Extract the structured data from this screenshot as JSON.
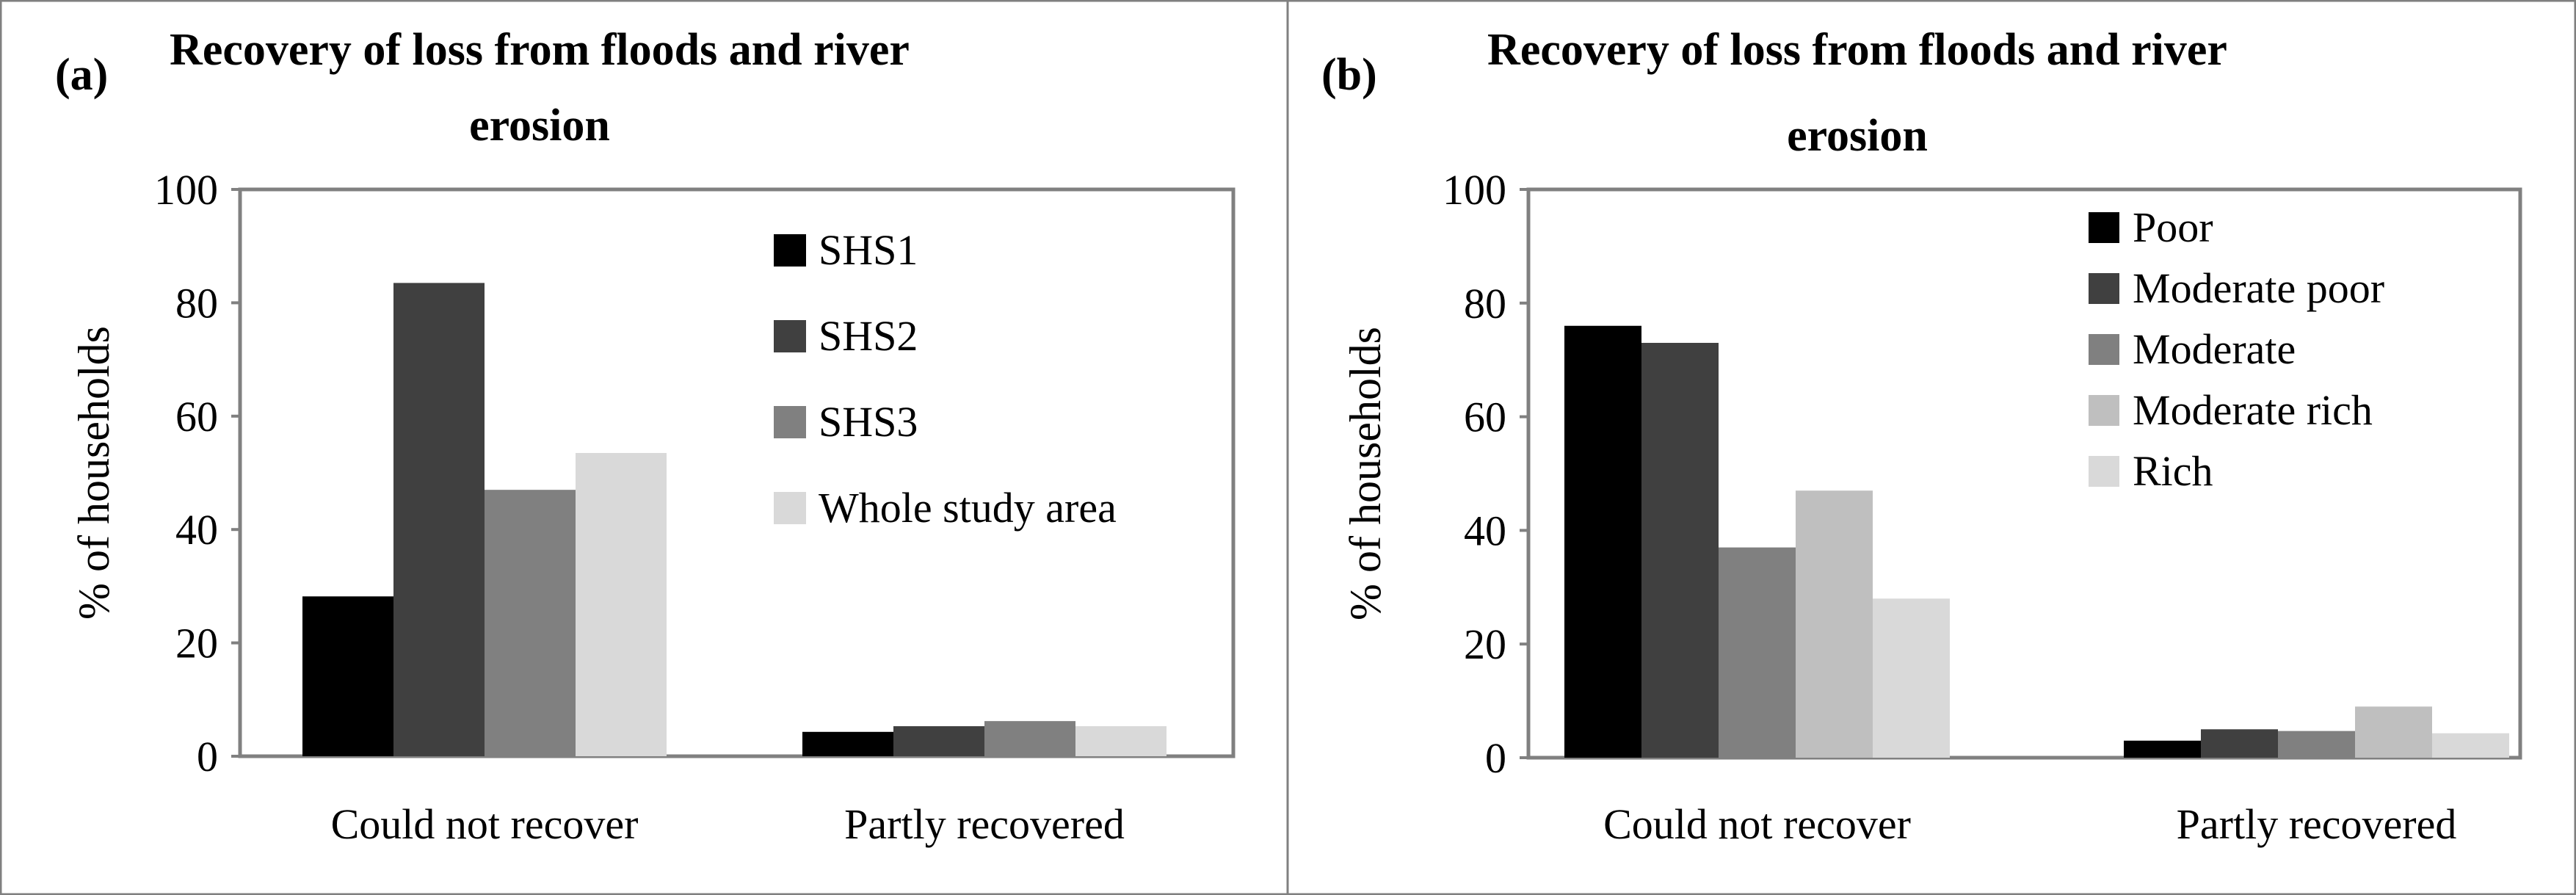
{
  "chart_data": [
    {
      "panel": "(a)",
      "type": "bar",
      "title_lines": [
        "Recovery of loss from floods and river",
        "erosion"
      ],
      "xlabel": "",
      "ylabel": "% of households",
      "ylim": [
        0,
        100
      ],
      "yticks": [
        "0",
        "20",
        "40",
        "60",
        "80",
        "100"
      ],
      "categories": [
        "Could not recover",
        "Partly recovered"
      ],
      "grid": false,
      "legend_position": "top-right",
      "series": [
        {
          "name": "SHS1",
          "color": "#000000",
          "values": [
            28.2,
            4.3
          ]
        },
        {
          "name": "SHS2",
          "color": "#404040",
          "values": [
            83.5,
            5.3
          ]
        },
        {
          "name": "SHS3",
          "color": "#808080",
          "values": [
            47.0,
            6.2
          ]
        },
        {
          "name": "Whole study area",
          "color": "#d9d9d9",
          "values": [
            53.5,
            5.3
          ]
        }
      ]
    },
    {
      "panel": "(b)",
      "type": "bar",
      "title_lines": [
        "Recovery of loss from floods and river",
        "erosion"
      ],
      "xlabel": "",
      "ylabel": "% of households",
      "ylim": [
        0,
        100
      ],
      "yticks": [
        "0",
        "20",
        "40",
        "60",
        "80",
        "100"
      ],
      "categories": [
        "Could not recover",
        "Partly recovered"
      ],
      "grid": false,
      "legend_position": "top-right",
      "series": [
        {
          "name": "Poor",
          "color": "#000000",
          "values": [
            76.0,
            3.0
          ]
        },
        {
          "name": "Moderate poor",
          "color": "#404040",
          "values": [
            73.0,
            5.0
          ]
        },
        {
          "name": "Moderate",
          "color": "#808080",
          "values": [
            37.0,
            4.7
          ]
        },
        {
          "name": "Moderate rich",
          "color": "#bfbfbf",
          "values": [
            47.0,
            9.0
          ]
        },
        {
          "name": "Rich",
          "color": "#d9d9d9",
          "values": [
            28.0,
            4.3
          ]
        }
      ]
    }
  ]
}
